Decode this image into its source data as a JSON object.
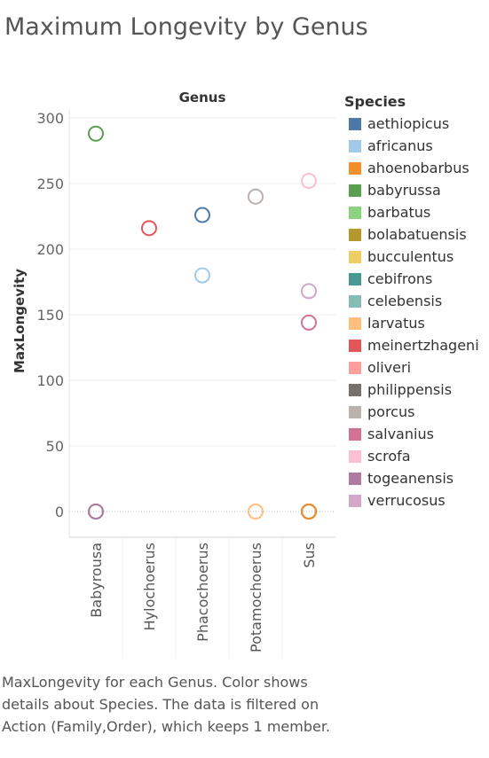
{
  "title": "Maximum Longevity by Genus",
  "caption": "MaxLongevity for each Genus.  Color shows details about Species. The data is filtered on Action (Family,Order), which keeps 1 member.",
  "legend": {
    "title": "Species",
    "items": [
      {
        "label": "aethiopicus",
        "color": "#4e79a7"
      },
      {
        "label": "africanus",
        "color": "#a0cbe8"
      },
      {
        "label": "ahoenobarbus",
        "color": "#f28e2b"
      },
      {
        "label": "babyrussa",
        "color": "#59a14f"
      },
      {
        "label": "barbatus",
        "color": "#8cd17d"
      },
      {
        "label": "bolabatuensis",
        "color": "#b6992d"
      },
      {
        "label": "bucculentus",
        "color": "#f1ce63"
      },
      {
        "label": "cebifrons",
        "color": "#499894"
      },
      {
        "label": "celebensis",
        "color": "#86bcb6"
      },
      {
        "label": "larvatus",
        "color": "#ffbe7d"
      },
      {
        "label": "meinertzhageni",
        "color": "#e15759"
      },
      {
        "label": "oliveri",
        "color": "#ff9d9a"
      },
      {
        "label": "philippensis",
        "color": "#79706e"
      },
      {
        "label": "porcus",
        "color": "#bab0ac"
      },
      {
        "label": "salvanius",
        "color": "#d37295"
      },
      {
        "label": "scrofa",
        "color": "#fabfd2"
      },
      {
        "label": "togeanensis",
        "color": "#b07aa1"
      },
      {
        "label": "verrucosus",
        "color": "#d4a6c8"
      }
    ]
  },
  "chart_data": {
    "type": "scatter",
    "column_header": "Genus",
    "ylabel": "MaxLongevity",
    "ylim": [
      -20,
      310
    ],
    "yticks": [
      0,
      50,
      100,
      150,
      200,
      250,
      300
    ],
    "categories": [
      "Babyrousa",
      "Hylochoerus",
      "Phacochoerus",
      "Potamochoerus",
      "Sus"
    ],
    "zero_line": true,
    "grid": true,
    "points": [
      {
        "genus": "Babyrousa",
        "species": "babyrussa",
        "value": 288
      },
      {
        "genus": "Babyrousa",
        "species": "bolabatuensis",
        "value": 0
      },
      {
        "genus": "Babyrousa",
        "species": "celebensis",
        "value": 0
      },
      {
        "genus": "Babyrousa",
        "species": "togeanensis",
        "value": 0
      },
      {
        "genus": "Hylochoerus",
        "species": "meinertzhageni",
        "value": 216
      },
      {
        "genus": "Phacochoerus",
        "species": "aethiopicus",
        "value": 226
      },
      {
        "genus": "Phacochoerus",
        "species": "africanus",
        "value": 180
      },
      {
        "genus": "Potamochoerus",
        "species": "porcus",
        "value": 240
      },
      {
        "genus": "Potamochoerus",
        "species": "larvatus",
        "value": 0
      },
      {
        "genus": "Sus",
        "species": "scrofa",
        "value": 252
      },
      {
        "genus": "Sus",
        "species": "verrucosus",
        "value": 168
      },
      {
        "genus": "Sus",
        "species": "salvanius",
        "value": 144
      },
      {
        "genus": "Sus",
        "species": "barbatus",
        "value": 0
      },
      {
        "genus": "Sus",
        "species": "bucculentus",
        "value": 0
      },
      {
        "genus": "Sus",
        "species": "cebifrons",
        "value": 0
      },
      {
        "genus": "Sus",
        "species": "oliveri",
        "value": 0
      },
      {
        "genus": "Sus",
        "species": "philippensis",
        "value": 0
      },
      {
        "genus": "Sus",
        "species": "ahoenobarbus",
        "value": 0
      }
    ]
  }
}
